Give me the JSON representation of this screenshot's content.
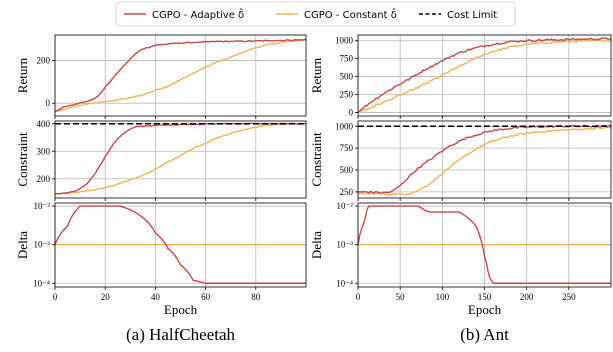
{
  "legend": {
    "entries": [
      {
        "label": "CGPO - Adaptive δ̂",
        "color": "#c8474f",
        "style": "solid"
      },
      {
        "label": "CGPO - Constant δ̂",
        "color": "#f0b454",
        "style": "solid"
      },
      {
        "label": "Cost Limit",
        "color": "#000000",
        "style": "dashed"
      }
    ],
    "placement": "top-center"
  },
  "colors": {
    "adaptive": "#c8474f",
    "constant": "#f0b454",
    "limit": "#000000"
  },
  "chart_data": [
    {
      "type": "line",
      "panel": "HalfCheetah",
      "caption": "(a) HalfCheetah",
      "xlabel": "Epoch",
      "xlim": [
        0,
        100
      ],
      "xticks": [
        0,
        20,
        40,
        60,
        80
      ],
      "rows": [
        {
          "name": "return",
          "ylabel": "Return",
          "scale": "linear",
          "ylim": [
            -60,
            320
          ],
          "yticks": [
            0,
            200
          ],
          "yticklabels": [
            "0",
            "200"
          ],
          "series": [
            {
              "name": "CGPO - Adaptive δ̂",
              "key": "adaptive",
              "x": [
                0,
                3,
                6,
                8,
                11,
                13,
                15,
                17,
                19,
                21,
                23,
                25,
                27,
                29,
                31,
                33,
                35,
                38,
                40,
                45,
                50,
                55,
                60,
                65,
                70,
                80,
                90,
                100
              ],
              "y": [
                -40,
                -20,
                -12,
                -5,
                5,
                10,
                20,
                30,
                60,
                90,
                115,
                145,
                170,
                195,
                220,
                240,
                255,
                265,
                272,
                278,
                282,
                285,
                287,
                290,
                290,
                292,
                295,
                298
              ]
            },
            {
              "name": "CGPO - Constant δ̂",
              "key": "constant",
              "x": [
                0,
                5,
                10,
                15,
                20,
                25,
                30,
                35,
                40,
                45,
                50,
                55,
                60,
                65,
                70,
                75,
                80,
                85,
                90,
                95,
                100
              ],
              "y": [
                -40,
                -25,
                -10,
                0,
                8,
                15,
                25,
                40,
                60,
                80,
                110,
                140,
                170,
                195,
                215,
                240,
                260,
                275,
                285,
                292,
                297
              ]
            }
          ]
        },
        {
          "name": "constraint",
          "ylabel": "Constraint",
          "scale": "linear",
          "ylim": [
            130,
            410
          ],
          "yticks": [
            200,
            300,
            400
          ],
          "yticklabels": [
            "200",
            "300",
            "400"
          ],
          "limit": 400,
          "series": [
            {
              "name": "CGPO - Adaptive δ̂",
              "key": "adaptive",
              "x": [
                0,
                3,
                6,
                9,
                12,
                14,
                16,
                18,
                20,
                22,
                24,
                26,
                28,
                30,
                32,
                34,
                36,
                38,
                40,
                45,
                50,
                55,
                60,
                70,
                80,
                90,
                100
              ],
              "y": [
                145,
                147,
                150,
                158,
                175,
                195,
                220,
                250,
                280,
                310,
                335,
                355,
                370,
                380,
                388,
                390,
                392,
                393,
                394,
                396,
                397,
                398,
                399,
                400,
                400,
                400,
                400
              ]
            },
            {
              "name": "CGPO - Constant δ̂",
              "key": "constant",
              "x": [
                0,
                5,
                10,
                15,
                20,
                25,
                30,
                35,
                40,
                45,
                50,
                55,
                60,
                65,
                70,
                75,
                80,
                85,
                90,
                95,
                100
              ],
              "y": [
                145,
                148,
                152,
                158,
                168,
                180,
                195,
                212,
                235,
                260,
                285,
                310,
                330,
                350,
                365,
                378,
                388,
                395,
                398,
                400,
                400
              ]
            }
          ]
        },
        {
          "name": "delta",
          "ylabel": "Delta",
          "scale": "log",
          "ylim": [
            8e-05,
            0.012
          ],
          "yticks": [
            0.0001,
            0.001,
            0.01
          ],
          "yticklabels": [
            "10⁻⁴",
            "10⁻³",
            "10⁻²"
          ],
          "series": [
            {
              "name": "CGPO - Adaptive δ̂",
              "key": "adaptive",
              "x": [
                0,
                5,
                10,
                12,
                26,
                30,
                35,
                40,
                45,
                50,
                55,
                60,
                70,
                80,
                90,
                100
              ],
              "y": [
                0.001,
                0.003,
                0.01,
                0.01,
                0.01,
                0.008,
                0.005,
                0.002,
                0.0008,
                0.0003,
                0.00012,
                0.0001,
                0.0001,
                0.0001,
                0.0001,
                0.0001
              ]
            },
            {
              "name": "CGPO - Constant δ̂",
              "key": "constant",
              "x": [
                0,
                100
              ],
              "y": [
                0.001,
                0.001
              ]
            }
          ]
        }
      ]
    },
    {
      "type": "line",
      "panel": "Ant",
      "caption": "(b) Ant",
      "xlabel": "Epoch",
      "xlim": [
        0,
        300
      ],
      "xticks": [
        0,
        50,
        100,
        150,
        200,
        250
      ],
      "rows": [
        {
          "name": "return",
          "ylabel": "Return",
          "scale": "linear",
          "ylim": [
            -50,
            1080
          ],
          "yticks": [
            0,
            250,
            500,
            750,
            1000
          ],
          "yticklabels": [
            "0",
            "250",
            "500",
            "750",
            "1000"
          ],
          "series": [
            {
              "name": "CGPO - Adaptive δ̂",
              "key": "adaptive",
              "x": [
                0,
                10,
                20,
                30,
                40,
                50,
                60,
                70,
                80,
                90,
                100,
                110,
                120,
                130,
                140,
                150,
                160,
                170,
                180,
                190,
                200,
                220,
                240,
                260,
                280,
                300
              ],
              "y": [
                0,
                100,
                180,
                260,
                330,
                400,
                460,
                530,
                600,
                660,
                720,
                780,
                830,
                870,
                900,
                930,
                950,
                970,
                985,
                995,
                1000,
                1010,
                1015,
                1020,
                1025,
                1030
              ]
            },
            {
              "name": "CGPO - Constant δ̂",
              "key": "constant",
              "x": [
                0,
                10,
                20,
                30,
                40,
                50,
                60,
                70,
                80,
                90,
                100,
                110,
                120,
                130,
                140,
                150,
                160,
                170,
                180,
                190,
                200,
                220,
                240,
                260,
                280,
                300
              ],
              "y": [
                0,
                40,
                90,
                140,
                190,
                240,
                290,
                340,
                400,
                460,
                520,
                580,
                640,
                700,
                760,
                810,
                850,
                880,
                910,
                930,
                950,
                970,
                985,
                995,
                1000,
                1005
              ]
            }
          ]
        },
        {
          "name": "constraint",
          "ylabel": "Constraint",
          "scale": "linear",
          "ylim": [
            180,
            1060
          ],
          "yticks": [
            250,
            500,
            750,
            1000
          ],
          "yticklabels": [
            "250",
            "500",
            "750",
            "1000"
          ],
          "limit": 1000,
          "series": [
            {
              "name": "CGPO - Adaptive δ̂",
              "key": "adaptive",
              "x": [
                0,
                10,
                20,
                30,
                40,
                50,
                60,
                70,
                80,
                90,
                100,
                110,
                120,
                130,
                140,
                150,
                160,
                170,
                180,
                190,
                200,
                220,
                240,
                260,
                280,
                300
              ],
              "y": [
                250,
                250,
                245,
                240,
                250,
                320,
                420,
                510,
                580,
                650,
                720,
                780,
                830,
                870,
                900,
                930,
                950,
                965,
                975,
                985,
                990,
                995,
                1000,
                1000,
                1000,
                1000
              ]
            },
            {
              "name": "CGPO - Constant δ̂",
              "key": "constant",
              "x": [
                0,
                10,
                20,
                30,
                40,
                50,
                60,
                70,
                80,
                90,
                100,
                110,
                120,
                130,
                140,
                150,
                160,
                170,
                180,
                190,
                200,
                220,
                240,
                260,
                280,
                300
              ],
              "y": [
                230,
                230,
                228,
                225,
                222,
                222,
                230,
                260,
                310,
                380,
                460,
                540,
                610,
                680,
                740,
                790,
                830,
                860,
                885,
                905,
                920,
                940,
                955,
                965,
                975,
                985
              ]
            }
          ]
        },
        {
          "name": "delta",
          "ylabel": "Delta",
          "scale": "log",
          "ylim": [
            8e-05,
            0.012
          ],
          "yticks": [
            0.0001,
            0.001,
            0.01
          ],
          "yticklabels": [
            "10⁻⁴",
            "10⁻³",
            "10⁻²"
          ],
          "series": [
            {
              "name": "CGPO - Adaptive δ̂",
              "key": "adaptive",
              "x": [
                0,
                8,
                12,
                70,
                75,
                80,
                85,
                100,
                115,
                120,
                130,
                135,
                140,
                145,
                150,
                155,
                160,
                200,
                250,
                300
              ],
              "y": [
                0.001,
                0.004,
                0.01,
                0.01,
                0.009,
                0.0075,
                0.007,
                0.007,
                0.007,
                0.007,
                0.005,
                0.004,
                0.003,
                0.0015,
                0.0005,
                0.00015,
                0.0001,
                0.0001,
                0.0001,
                0.0001
              ]
            },
            {
              "name": "CGPO - Constant δ̂",
              "key": "constant",
              "x": [
                0,
                300
              ],
              "y": [
                0.001,
                0.001
              ]
            }
          ]
        }
      ]
    }
  ]
}
